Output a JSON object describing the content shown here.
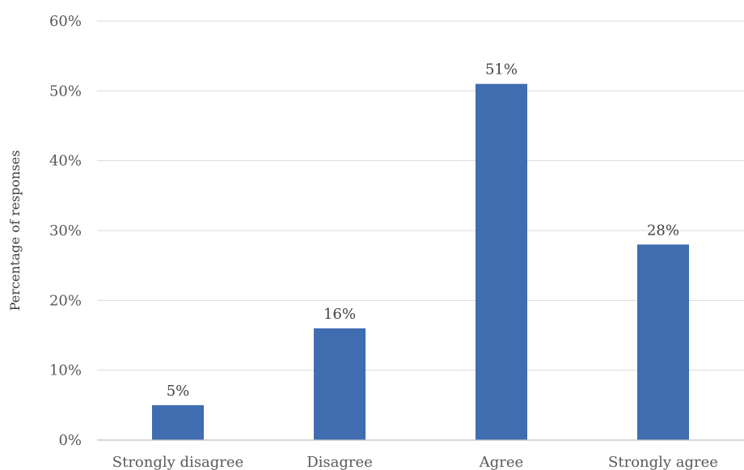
{
  "chart_data": {
    "type": "bar",
    "title": "",
    "xlabel": "",
    "ylabel": "Percentage of responses",
    "categories": [
      "Strongly disagree",
      "Disagree",
      "Agree",
      "Strongly agree"
    ],
    "values": [
      5,
      16,
      51,
      28
    ],
    "data_labels": [
      "5%",
      "16%",
      "51%",
      "28%"
    ],
    "ylim": [
      0,
      60
    ],
    "yticks": [
      0,
      10,
      20,
      30,
      40,
      50,
      60
    ],
    "ytick_labels": [
      "0%",
      "10%",
      "20%",
      "30%",
      "40%",
      "50%",
      "60%"
    ],
    "grid": true,
    "legend": "none",
    "bar_color": "#3f6db0"
  }
}
